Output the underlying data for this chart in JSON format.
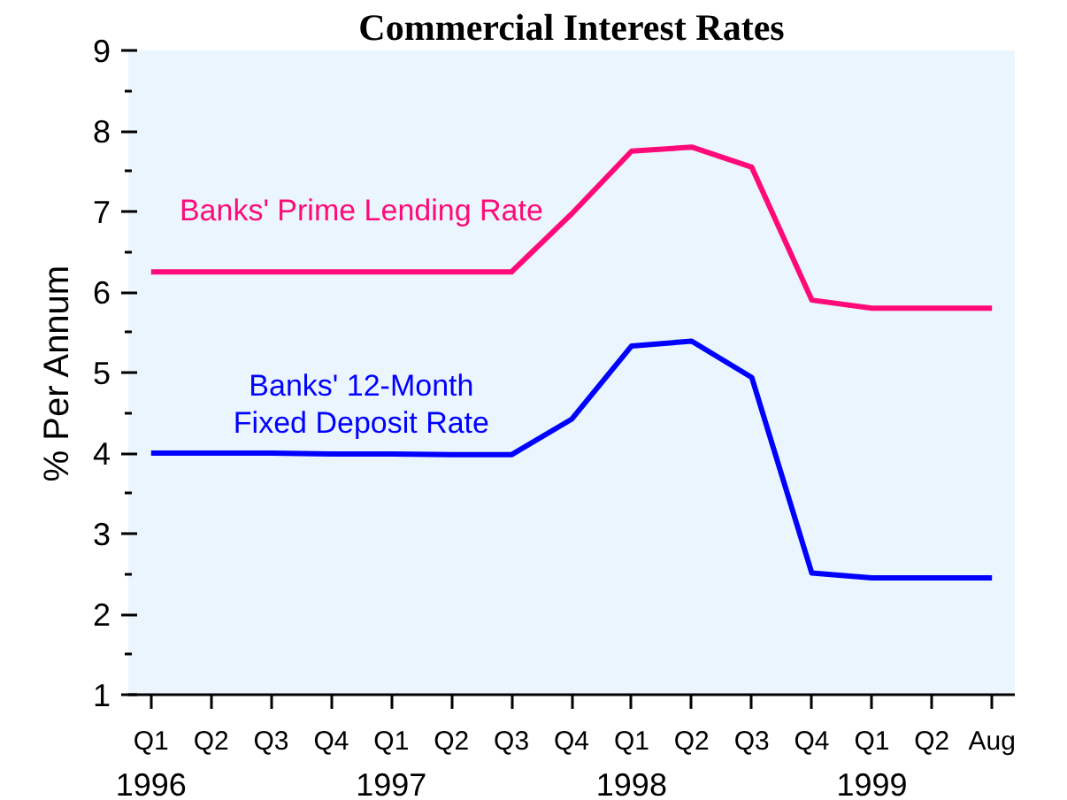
{
  "chart_data": {
    "type": "line",
    "title": "Commercial Interest Rates",
    "ylabel": "% Per Annum",
    "categories": [
      "Q1\n1996",
      "Q2",
      "Q3",
      "Q4",
      "Q1\n1997",
      "Q2",
      "Q3",
      "Q4",
      "Q1\n1998",
      "Q2",
      "Q3",
      "Q4",
      "Q1\n1999",
      "Q2",
      "Aug"
    ],
    "series": [
      {
        "name": "Banks' Prime Lending Rate",
        "color": "#ff0a78",
        "values": [
          6.25,
          6.25,
          6.25,
          6.25,
          6.25,
          6.25,
          6.25,
          6.97,
          7.75,
          7.8,
          7.55,
          5.9,
          5.8,
          5.8,
          5.8
        ]
      },
      {
        "name": "Banks' 12-Month\nFixed Deposit Rate",
        "color": "#0000ff",
        "values": [
          4.0,
          4.0,
          4.0,
          3.99,
          3.99,
          3.98,
          3.98,
          4.42,
          5.33,
          5.39,
          4.94,
          2.51,
          2.45,
          2.45,
          2.45
        ]
      }
    ],
    "ylim": [
      1,
      9
    ],
    "yticks": [
      1,
      {
        "value": 1.5,
        "label": null
      },
      2,
      {
        "value": 2.5,
        "label": null
      },
      3,
      {
        "value": 3.5,
        "label": null
      },
      4,
      {
        "value": 4.5,
        "label": null
      },
      5,
      {
        "value": 5.5,
        "label": null
      },
      6,
      {
        "value": 6.5,
        "label": null
      },
      7,
      {
        "value": 7.5,
        "label": null
      },
      8,
      {
        "value": 8.5,
        "label": null
      },
      9
    ],
    "line_style": "solid",
    "grid": false
  }
}
